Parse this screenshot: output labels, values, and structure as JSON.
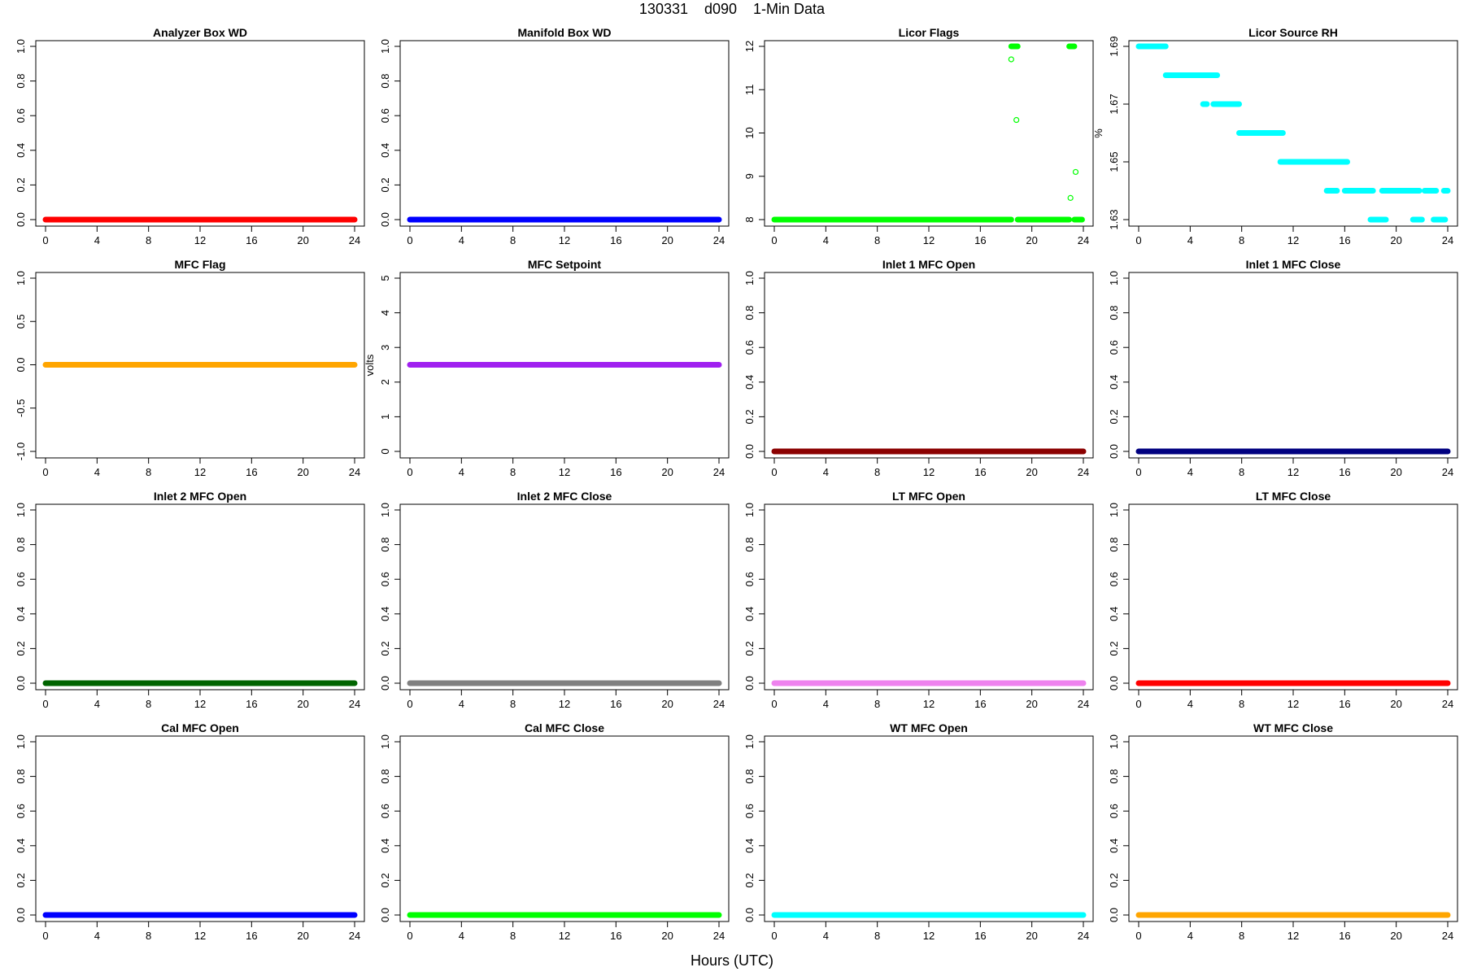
{
  "page": {
    "title": "130331    d090    1-Min Data",
    "xlabel": "Hours (UTC)"
  },
  "chart_data": [
    {
      "type": "scatter",
      "title": "Analyzer Box WD",
      "ylabel": "",
      "color": "#ff0000",
      "xlim": [
        0,
        24
      ],
      "ylim": [
        0,
        1
      ],
      "xticks": [
        0,
        4,
        8,
        12,
        16,
        20,
        24
      ],
      "yticks": [
        0,
        0.2,
        0.4,
        0.6,
        0.8,
        1.0
      ],
      "ytick_labels": [
        "0.0",
        "0.2",
        "0.4",
        "0.6",
        "0.8",
        "1.0"
      ],
      "segments": [
        {
          "x": [
            0,
            24
          ],
          "y": 0
        }
      ]
    },
    {
      "type": "scatter",
      "title": "Manifold Box WD",
      "ylabel": "",
      "color": "#0000ff",
      "xlim": [
        0,
        24
      ],
      "ylim": [
        0,
        1
      ],
      "xticks": [
        0,
        4,
        8,
        12,
        16,
        20,
        24
      ],
      "yticks": [
        0,
        0.2,
        0.4,
        0.6,
        0.8,
        1.0
      ],
      "ytick_labels": [
        "0.0",
        "0.2",
        "0.4",
        "0.6",
        "0.8",
        "1.0"
      ],
      "segments": [
        {
          "x": [
            0,
            24
          ],
          "y": 0
        }
      ]
    },
    {
      "type": "scatter",
      "title": "Licor Flags",
      "ylabel": "",
      "color": "#00ff00",
      "xlim": [
        0,
        24
      ],
      "ylim": [
        8,
        12
      ],
      "xticks": [
        0,
        4,
        8,
        12,
        16,
        20,
        24
      ],
      "yticks": [
        8,
        9,
        10,
        11,
        12
      ],
      "ytick_labels": [
        "8",
        "9",
        "10",
        "11",
        "12"
      ],
      "segments": [
        {
          "x": [
            0,
            18.4
          ],
          "y": 8
        },
        {
          "x": [
            18.9,
            22.9
          ],
          "y": 8
        },
        {
          "x": [
            23.3,
            23.9
          ],
          "y": 8
        },
        {
          "x": [
            18.4,
            18.9
          ],
          "y": 12
        },
        {
          "x": [
            22.9,
            23.3
          ],
          "y": 12
        }
      ],
      "points": [
        {
          "x": 18.4,
          "y": 11.7
        },
        {
          "x": 18.8,
          "y": 10.3
        },
        {
          "x": 23.0,
          "y": 8.5
        },
        {
          "x": 23.4,
          "y": 9.1
        }
      ]
    },
    {
      "type": "scatter",
      "title": "Licor Source RH",
      "ylabel": "%",
      "color": "#00ffff",
      "xlim": [
        0,
        24
      ],
      "ylim": [
        1.63,
        1.69
      ],
      "xticks": [
        0,
        4,
        8,
        12,
        16,
        20,
        24
      ],
      "yticks": [
        1.63,
        1.65,
        1.67,
        1.69
      ],
      "ytick_labels": [
        "1.63",
        "1.65",
        "1.67",
        "1.69"
      ],
      "segments": [
        {
          "x": [
            0,
            2.1
          ],
          "y": 1.69
        },
        {
          "x": [
            2.1,
            6.1
          ],
          "y": 1.68
        },
        {
          "x": [
            5.0,
            5.3
          ],
          "y": 1.67
        },
        {
          "x": [
            5.8,
            7.8
          ],
          "y": 1.67
        },
        {
          "x": [
            7.8,
            11.2
          ],
          "y": 1.66
        },
        {
          "x": [
            11.0,
            15.0
          ],
          "y": 1.65
        },
        {
          "x": [
            15.0,
            16.2
          ],
          "y": 1.65
        },
        {
          "x": [
            14.6,
            15.4
          ],
          "y": 1.64
        },
        {
          "x": [
            16.0,
            18.2
          ],
          "y": 1.64
        },
        {
          "x": [
            18.9,
            21.8
          ],
          "y": 1.64
        },
        {
          "x": [
            22.2,
            23.1
          ],
          "y": 1.64
        },
        {
          "x": [
            23.7,
            24.0
          ],
          "y": 1.64
        },
        {
          "x": [
            18.0,
            19.2
          ],
          "y": 1.63
        },
        {
          "x": [
            21.3,
            22.0
          ],
          "y": 1.63
        },
        {
          "x": [
            22.9,
            23.8
          ],
          "y": 1.63
        }
      ]
    },
    {
      "type": "scatter",
      "title": "MFC Flag",
      "ylabel": "",
      "color": "#ffa500",
      "xlim": [
        0,
        24
      ],
      "ylim": [
        -1,
        1
      ],
      "xticks": [
        0,
        4,
        8,
        12,
        16,
        20,
        24
      ],
      "yticks": [
        -1,
        -0.5,
        0,
        0.5,
        1
      ],
      "ytick_labels": [
        "-1.0",
        "-0.5",
        "0.0",
        "0.5",
        "1.0"
      ],
      "segments": [
        {
          "x": [
            0,
            24
          ],
          "y": 0
        }
      ]
    },
    {
      "type": "scatter",
      "title": "MFC Setpoint",
      "ylabel": "volts",
      "color": "#a020f0",
      "xlim": [
        0,
        24
      ],
      "ylim": [
        0,
        5
      ],
      "xticks": [
        0,
        4,
        8,
        12,
        16,
        20,
        24
      ],
      "yticks": [
        0,
        1,
        2,
        3,
        4,
        5
      ],
      "ytick_labels": [
        "0",
        "1",
        "2",
        "3",
        "4",
        "5"
      ],
      "segments": [
        {
          "x": [
            0,
            24
          ],
          "y": 2.5
        }
      ]
    },
    {
      "type": "scatter",
      "title": "Inlet 1 MFC Open",
      "ylabel": "",
      "color": "#8b0000",
      "xlim": [
        0,
        24
      ],
      "ylim": [
        0,
        1
      ],
      "xticks": [
        0,
        4,
        8,
        12,
        16,
        20,
        24
      ],
      "yticks": [
        0,
        0.2,
        0.4,
        0.6,
        0.8,
        1.0
      ],
      "ytick_labels": [
        "0.0",
        "0.2",
        "0.4",
        "0.6",
        "0.8",
        "1.0"
      ],
      "segments": [
        {
          "x": [
            0,
            24
          ],
          "y": 0
        }
      ]
    },
    {
      "type": "scatter",
      "title": "Inlet 1 MFC Close",
      "ylabel": "",
      "color": "#000080",
      "xlim": [
        0,
        24
      ],
      "ylim": [
        0,
        1
      ],
      "xticks": [
        0,
        4,
        8,
        12,
        16,
        20,
        24
      ],
      "yticks": [
        0,
        0.2,
        0.4,
        0.6,
        0.8,
        1.0
      ],
      "ytick_labels": [
        "0.0",
        "0.2",
        "0.4",
        "0.6",
        "0.8",
        "1.0"
      ],
      "segments": [
        {
          "x": [
            0,
            24
          ],
          "y": 0
        }
      ]
    },
    {
      "type": "scatter",
      "title": "Inlet 2 MFC Open",
      "ylabel": "",
      "color": "#006400",
      "xlim": [
        0,
        24
      ],
      "ylim": [
        0,
        1
      ],
      "xticks": [
        0,
        4,
        8,
        12,
        16,
        20,
        24
      ],
      "yticks": [
        0,
        0.2,
        0.4,
        0.6,
        0.8,
        1.0
      ],
      "ytick_labels": [
        "0.0",
        "0.2",
        "0.4",
        "0.6",
        "0.8",
        "1.0"
      ],
      "segments": [
        {
          "x": [
            0,
            24
          ],
          "y": 0
        }
      ]
    },
    {
      "type": "scatter",
      "title": "Inlet 2 MFC Close",
      "ylabel": "",
      "color": "#808080",
      "xlim": [
        0,
        24
      ],
      "ylim": [
        0,
        1
      ],
      "xticks": [
        0,
        4,
        8,
        12,
        16,
        20,
        24
      ],
      "yticks": [
        0,
        0.2,
        0.4,
        0.6,
        0.8,
        1.0
      ],
      "ytick_labels": [
        "0.0",
        "0.2",
        "0.4",
        "0.6",
        "0.8",
        "1.0"
      ],
      "segments": [
        {
          "x": [
            0,
            24
          ],
          "y": 0
        }
      ]
    },
    {
      "type": "scatter",
      "title": "LT MFC Open",
      "ylabel": "",
      "color": "#ee82ee",
      "xlim": [
        0,
        24
      ],
      "ylim": [
        0,
        1
      ],
      "xticks": [
        0,
        4,
        8,
        12,
        16,
        20,
        24
      ],
      "yticks": [
        0,
        0.2,
        0.4,
        0.6,
        0.8,
        1.0
      ],
      "ytick_labels": [
        "0.0",
        "0.2",
        "0.4",
        "0.6",
        "0.8",
        "1.0"
      ],
      "segments": [
        {
          "x": [
            0,
            24
          ],
          "y": 0
        }
      ]
    },
    {
      "type": "scatter",
      "title": "LT MFC Close",
      "ylabel": "",
      "color": "#ff0000",
      "xlim": [
        0,
        24
      ],
      "ylim": [
        0,
        1
      ],
      "xticks": [
        0,
        4,
        8,
        12,
        16,
        20,
        24
      ],
      "yticks": [
        0,
        0.2,
        0.4,
        0.6,
        0.8,
        1.0
      ],
      "ytick_labels": [
        "0.0",
        "0.2",
        "0.4",
        "0.6",
        "0.8",
        "1.0"
      ],
      "segments": [
        {
          "x": [
            0,
            24
          ],
          "y": 0
        }
      ]
    },
    {
      "type": "scatter",
      "title": "Cal MFC Open",
      "ylabel": "",
      "color": "#0000ff",
      "xlim": [
        0,
        24
      ],
      "ylim": [
        0,
        1
      ],
      "xticks": [
        0,
        4,
        8,
        12,
        16,
        20,
        24
      ],
      "yticks": [
        0,
        0.2,
        0.4,
        0.6,
        0.8,
        1.0
      ],
      "ytick_labels": [
        "0.0",
        "0.2",
        "0.4",
        "0.6",
        "0.8",
        "1.0"
      ],
      "segments": [
        {
          "x": [
            0,
            24
          ],
          "y": 0
        }
      ]
    },
    {
      "type": "scatter",
      "title": "Cal MFC Close",
      "ylabel": "",
      "color": "#00ff00",
      "xlim": [
        0,
        24
      ],
      "ylim": [
        0,
        1
      ],
      "xticks": [
        0,
        4,
        8,
        12,
        16,
        20,
        24
      ],
      "yticks": [
        0,
        0.2,
        0.4,
        0.6,
        0.8,
        1.0
      ],
      "ytick_labels": [
        "0.0",
        "0.2",
        "0.4",
        "0.6",
        "0.8",
        "1.0"
      ],
      "segments": [
        {
          "x": [
            0,
            24
          ],
          "y": 0
        }
      ]
    },
    {
      "type": "scatter",
      "title": "WT MFC Open",
      "ylabel": "",
      "color": "#00ffff",
      "xlim": [
        0,
        24
      ],
      "ylim": [
        0,
        1
      ],
      "xticks": [
        0,
        4,
        8,
        12,
        16,
        20,
        24
      ],
      "yticks": [
        0,
        0.2,
        0.4,
        0.6,
        0.8,
        1.0
      ],
      "ytick_labels": [
        "0.0",
        "0.2",
        "0.4",
        "0.6",
        "0.8",
        "1.0"
      ],
      "segments": [
        {
          "x": [
            0,
            24
          ],
          "y": 0
        }
      ]
    },
    {
      "type": "scatter",
      "title": "WT MFC Close",
      "ylabel": "",
      "color": "#ffa500",
      "xlim": [
        0,
        24
      ],
      "ylim": [
        0,
        1
      ],
      "xticks": [
        0,
        4,
        8,
        12,
        16,
        20,
        24
      ],
      "yticks": [
        0,
        0.2,
        0.4,
        0.6,
        0.8,
        1.0
      ],
      "ytick_labels": [
        "0.0",
        "0.2",
        "0.4",
        "0.6",
        "0.8",
        "1.0"
      ],
      "segments": [
        {
          "x": [
            0,
            24
          ],
          "y": 0
        }
      ]
    }
  ]
}
